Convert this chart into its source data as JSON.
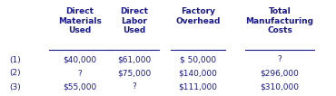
{
  "col_headers": [
    "Direct\nMaterials\nUsed",
    "Direct\nLabor\nUsed",
    "Factory\nOverhead",
    "Total\nManufacturing\nCosts"
  ],
  "row_labels": [
    "(1)",
    "(2)",
    "(3)"
  ],
  "cells": [
    [
      "$40,000",
      "$61,000",
      "$ 50,000",
      "?"
    ],
    [
      "?",
      "$75,000",
      "$140,000",
      "$296,000"
    ],
    [
      "$55,000",
      "?",
      "$111,000",
      "$310,000"
    ]
  ],
  "text_color": "#1a1a8c",
  "background_color": "#ffffff",
  "font_size": 6.5
}
